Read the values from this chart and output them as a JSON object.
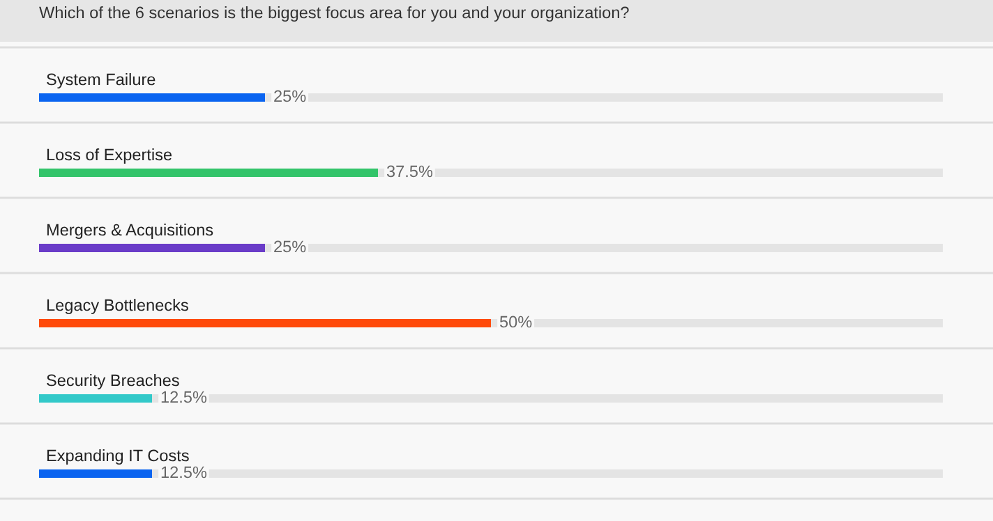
{
  "chart_data": {
    "type": "bar",
    "orientation": "horizontal",
    "title": "Which of the 6 scenarios is the biggest focus area for you and your organization?",
    "categories": [
      "System Failure",
      "Loss of Expertise",
      "Mergers & Acquisitions",
      "Legacy Bottlenecks",
      "Security Breaches",
      "Expanding IT Costs"
    ],
    "values": [
      25,
      37.5,
      25,
      50,
      12.5,
      12.5
    ],
    "value_labels": [
      "25%",
      "37.5%",
      "25%",
      "50%",
      "12.5%",
      "12.5%"
    ],
    "colors": [
      "#0a64f0",
      "#33c46a",
      "#6a3cc8",
      "#ff4a0a",
      "#33c9c9",
      "#0a64f0"
    ],
    "xlim": [
      0,
      100
    ],
    "tick_labels": "y"
  }
}
